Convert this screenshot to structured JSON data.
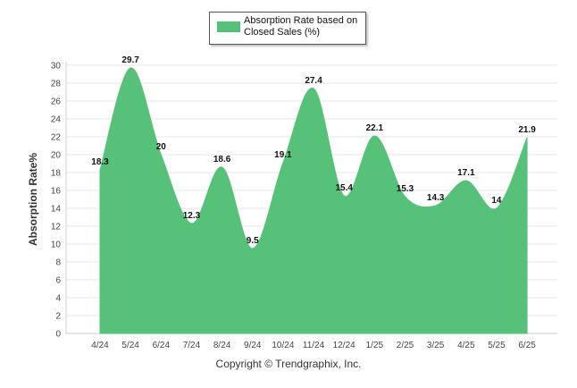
{
  "chart_data": {
    "type": "area",
    "categories": [
      "4/24",
      "5/24",
      "6/24",
      "7/24",
      "8/24",
      "9/24",
      "10/24",
      "11/24",
      "12/24",
      "1/25",
      "2/25",
      "3/25",
      "4/25",
      "5/25",
      "6/25"
    ],
    "series": [
      {
        "name": "Absorption Rate based on Closed Sales (%)",
        "values": [
          18.3,
          29.7,
          20,
          12.3,
          18.6,
          9.5,
          19.1,
          27.4,
          15.4,
          22.1,
          15.3,
          14.3,
          17.1,
          14,
          21.9
        ],
        "labels": [
          "18.3",
          "29.7",
          "20",
          "12.3",
          "18.6",
          "9.5",
          "19.1",
          "27.4",
          "15.4",
          "22.1",
          "15.3",
          "14.3",
          "17.1",
          "14",
          "21.9"
        ],
        "color": "#56c178"
      }
    ],
    "yticks": [
      0,
      2,
      4,
      6,
      8,
      10,
      12,
      14,
      16,
      18,
      20,
      22,
      24,
      26,
      28,
      30
    ],
    "ylim": [
      0,
      30
    ],
    "ylabel": "Absorption Rate%",
    "xlabel": "",
    "grid": true,
    "legend_position": "top-center"
  },
  "legend": {
    "label": "Absorption Rate based on Closed Sales (%)"
  },
  "credit": "Copyright © Trendgraphix, Inc."
}
